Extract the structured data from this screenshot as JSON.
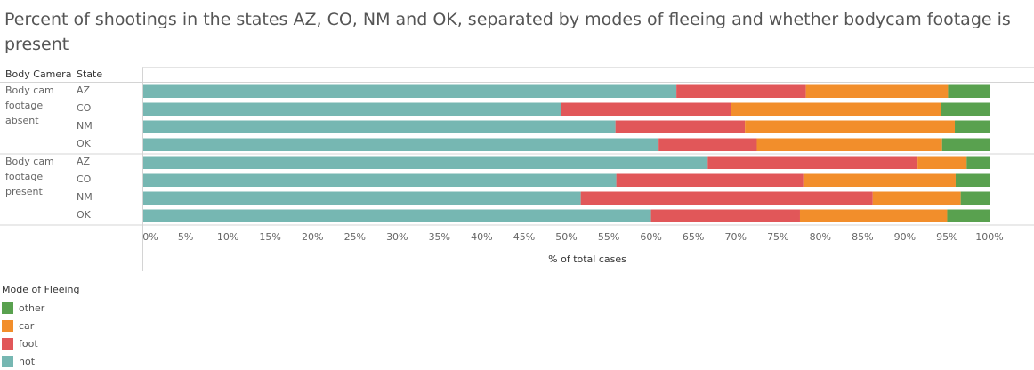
{
  "title": "Percent of shootings in the states AZ, CO, NM and OK, separated by modes of fleeing and whether bodycam footage is present",
  "headers": {
    "group": "Body Camera",
    "state": "State"
  },
  "legend": {
    "title": "Mode of Fleeing",
    "items": [
      {
        "label": "other",
        "color": "#59A14F"
      },
      {
        "label": "car",
        "color": "#F28E2B"
      },
      {
        "label": "foot",
        "color": "#E15759"
      },
      {
        "label": "not",
        "color": "#76B7B2"
      }
    ]
  },
  "chart_data": {
    "type": "bar",
    "orientation": "horizontal",
    "stacked": true,
    "xlabel": "% of total cases",
    "xlim": [
      0,
      100
    ],
    "ticks": [
      "0%",
      "5%",
      "10%",
      "15%",
      "20%",
      "25%",
      "30%",
      "35%",
      "40%",
      "45%",
      "50%",
      "55%",
      "60%",
      "65%",
      "70%",
      "75%",
      "80%",
      "85%",
      "90%",
      "95%",
      "100%"
    ],
    "groups": [
      {
        "label": "Body cam footage absent",
        "rows": [
          {
            "state": "AZ",
            "values": {
              "not": 63.0,
              "foot": 15.3,
              "car": 16.8,
              "other": 4.9
            }
          },
          {
            "state": "CO",
            "values": {
              "not": 49.4,
              "foot": 20.0,
              "car": 24.9,
              "other": 5.7
            }
          },
          {
            "state": "NM",
            "values": {
              "not": 55.8,
              "foot": 15.3,
              "car": 24.8,
              "other": 4.1
            }
          },
          {
            "state": "OK",
            "values": {
              "not": 60.9,
              "foot": 11.6,
              "car": 21.9,
              "other": 5.6
            }
          }
        ]
      },
      {
        "label": "Body cam footage present",
        "rows": [
          {
            "state": "AZ",
            "values": {
              "not": 66.7,
              "foot": 24.8,
              "car": 5.8,
              "other": 2.7
            }
          },
          {
            "state": "CO",
            "values": {
              "not": 55.9,
              "foot": 22.1,
              "car": 18.0,
              "other": 4.0
            }
          },
          {
            "state": "NM",
            "values": {
              "not": 51.7,
              "foot": 34.5,
              "car": 10.4,
              "other": 3.4
            }
          },
          {
            "state": "OK",
            "values": {
              "not": 60.0,
              "foot": 17.6,
              "car": 17.4,
              "other": 5.0
            }
          }
        ]
      }
    ],
    "series_order": [
      "not",
      "foot",
      "car",
      "other"
    ],
    "grid": false,
    "legend_position": "bottom-left"
  }
}
